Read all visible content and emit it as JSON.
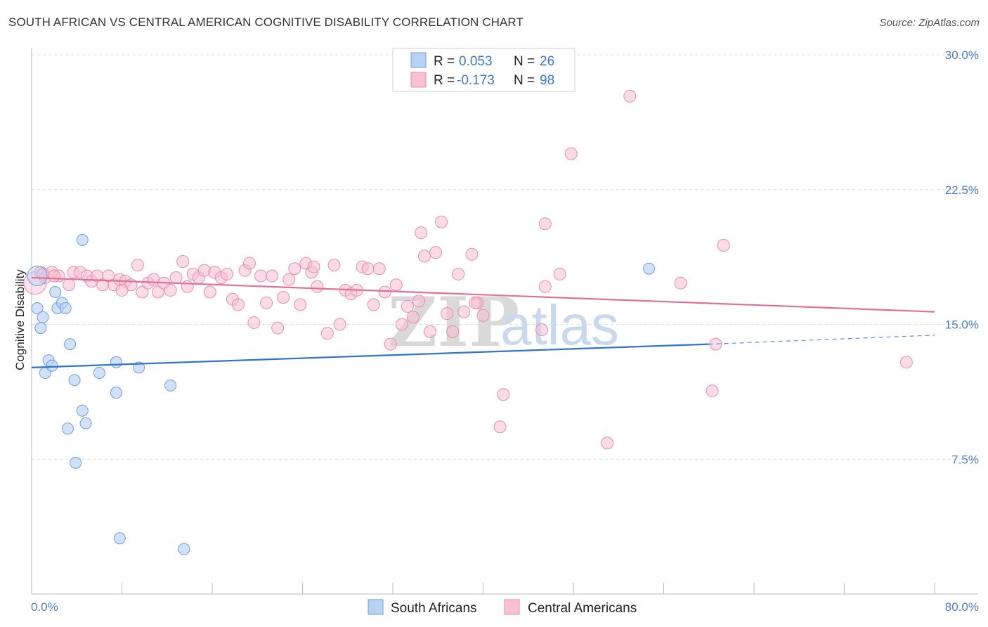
{
  "title": "SOUTH AFRICAN VS CENTRAL AMERICAN COGNITIVE DISABILITY CORRELATION CHART",
  "source": "Source: ZipAtlas.com",
  "watermark": {
    "zip": "ZIP",
    "atlas": "atlas"
  },
  "colors": {
    "blue_fill": "#b8d2f4",
    "blue_stroke": "#6f9fdf",
    "blue_line": "#2f74cf",
    "pink_fill": "#f8c0d2",
    "pink_stroke": "#e68eab",
    "pink_line": "#e0709a",
    "tick_text": "#4a7fcf",
    "grid": "#dcdcdc"
  },
  "chart_data": {
    "type": "scatter",
    "title": "SOUTH AFRICAN VS CENTRAL AMERICAN COGNITIVE DISABILITY CORRELATION CHART",
    "xlabel": "",
    "ylabel": "Cognitive Disability",
    "xlim": [
      0,
      80
    ],
    "ylim": [
      0,
      30.0
    ],
    "x_tick_labels": [
      "0.0%",
      "80.0%"
    ],
    "y_ticks": [
      7.5,
      15.0,
      22.5,
      30.0
    ],
    "y_tick_labels": [
      "7.5%",
      "15.0%",
      "22.5%",
      "30.0%"
    ],
    "grid": true,
    "legend": {
      "entries": [
        {
          "series": "South Africans",
          "r_label": "R =",
          "r": "0.053",
          "n_label": "N =",
          "n": "26"
        },
        {
          "series": "Central Americans",
          "r_label": "R =",
          "r": "-0.173",
          "n_label": "N =",
          "n": "98"
        }
      ]
    },
    "series": [
      {
        "name": "South Africans",
        "trend": {
          "x": [
            0,
            60
          ],
          "y": [
            12.6,
            13.9
          ],
          "dashed_extension": {
            "x": [
              60,
              80
            ],
            "y": [
              13.9,
              14.4
            ]
          }
        },
        "points": [
          [
            0.5,
            17.7
          ],
          [
            0.5,
            15.9
          ],
          [
            0.8,
            14.8
          ],
          [
            1.0,
            15.4
          ],
          [
            1.2,
            12.3
          ],
          [
            1.5,
            13.0
          ],
          [
            1.8,
            12.7
          ],
          [
            2.1,
            16.8
          ],
          [
            2.3,
            15.9
          ],
          [
            2.7,
            16.2
          ],
          [
            3.0,
            15.9
          ],
          [
            3.4,
            13.9
          ],
          [
            3.8,
            11.9
          ],
          [
            4.5,
            10.2
          ],
          [
            4.8,
            9.5
          ],
          [
            3.2,
            9.2
          ],
          [
            3.9,
            7.3
          ],
          [
            4.5,
            19.7
          ],
          [
            6.0,
            12.3
          ],
          [
            7.5,
            12.9
          ],
          [
            7.5,
            11.2
          ],
          [
            9.5,
            12.6
          ],
          [
            12.3,
            11.6
          ],
          [
            7.8,
            3.1
          ],
          [
            13.5,
            2.5
          ],
          [
            54.7,
            18.1
          ]
        ]
      },
      {
        "name": "Central Americans",
        "trend": {
          "x": [
            0,
            80
          ],
          "y": [
            17.6,
            15.7
          ]
        },
        "points": [
          [
            0.3,
            17.3
          ],
          [
            0.8,
            17.9
          ],
          [
            1.2,
            17.6
          ],
          [
            1.8,
            17.9
          ],
          [
            2.4,
            17.7
          ],
          [
            3.3,
            17.2
          ],
          [
            3.7,
            17.9
          ],
          [
            4.3,
            17.9
          ],
          [
            4.9,
            17.7
          ],
          [
            5.3,
            17.4
          ],
          [
            5.8,
            17.7
          ],
          [
            6.3,
            17.2
          ],
          [
            6.8,
            17.7
          ],
          [
            7.3,
            17.2
          ],
          [
            7.8,
            17.5
          ],
          [
            8.3,
            17.4
          ],
          [
            8.8,
            17.2
          ],
          [
            9.4,
            18.3
          ],
          [
            9.8,
            16.8
          ],
          [
            10.3,
            17.3
          ],
          [
            10.8,
            17.5
          ],
          [
            11.2,
            16.8
          ],
          [
            11.7,
            17.3
          ],
          [
            12.3,
            16.9
          ],
          [
            12.8,
            17.6
          ],
          [
            13.4,
            18.5
          ],
          [
            13.8,
            17.1
          ],
          [
            14.3,
            17.8
          ],
          [
            14.8,
            17.6
          ],
          [
            15.3,
            18.0
          ],
          [
            15.8,
            16.8
          ],
          [
            16.2,
            17.9
          ],
          [
            16.8,
            17.6
          ],
          [
            17.3,
            17.8
          ],
          [
            17.8,
            16.4
          ],
          [
            18.3,
            16.1
          ],
          [
            18.9,
            18.0
          ],
          [
            19.3,
            18.4
          ],
          [
            19.7,
            15.1
          ],
          [
            20.3,
            17.7
          ],
          [
            20.8,
            16.2
          ],
          [
            21.3,
            17.7
          ],
          [
            21.8,
            14.8
          ],
          [
            22.3,
            16.5
          ],
          [
            22.8,
            17.5
          ],
          [
            23.3,
            18.1
          ],
          [
            23.8,
            16.1
          ],
          [
            24.3,
            18.4
          ],
          [
            24.8,
            17.9
          ],
          [
            25.3,
            17.1
          ],
          [
            26.2,
            14.5
          ],
          [
            26.8,
            18.3
          ],
          [
            27.3,
            15.0
          ],
          [
            27.8,
            16.9
          ],
          [
            28.3,
            16.7
          ],
          [
            28.8,
            16.9
          ],
          [
            29.3,
            18.2
          ],
          [
            29.8,
            18.1
          ],
          [
            30.3,
            16.1
          ],
          [
            30.8,
            18.1
          ],
          [
            31.3,
            16.8
          ],
          [
            31.8,
            13.9
          ],
          [
            32.3,
            17.2
          ],
          [
            32.8,
            15.0
          ],
          [
            33.3,
            16.0
          ],
          [
            33.8,
            15.4
          ],
          [
            34.3,
            16.3
          ],
          [
            34.8,
            18.8
          ],
          [
            35.3,
            14.6
          ],
          [
            35.8,
            19.0
          ],
          [
            36.3,
            20.7
          ],
          [
            36.8,
            15.6
          ],
          [
            37.3,
            14.6
          ],
          [
            37.8,
            17.8
          ],
          [
            38.3,
            15.7
          ],
          [
            39.0,
            18.9
          ],
          [
            39.5,
            16.2
          ],
          [
            40.0,
            15.5
          ],
          [
            41.5,
            9.3
          ],
          [
            41.8,
            11.1
          ],
          [
            45.2,
            14.7
          ],
          [
            45.5,
            17.1
          ],
          [
            46.8,
            17.8
          ],
          [
            47.8,
            24.5
          ],
          [
            51.0,
            8.4
          ],
          [
            53.0,
            27.7
          ],
          [
            57.5,
            17.3
          ],
          [
            60.3,
            11.3
          ],
          [
            60.6,
            13.9
          ],
          [
            61.3,
            19.4
          ],
          [
            77.5,
            12.9
          ],
          [
            34.5,
            20.1
          ],
          [
            45.5,
            20.6
          ],
          [
            39.3,
            16.2
          ],
          [
            2.0,
            17.7
          ],
          [
            1.0,
            17.8
          ],
          [
            8.0,
            16.9
          ],
          [
            25.0,
            18.2
          ]
        ]
      }
    ]
  },
  "bottom_legend": [
    "South Africans",
    "Central Americans"
  ]
}
